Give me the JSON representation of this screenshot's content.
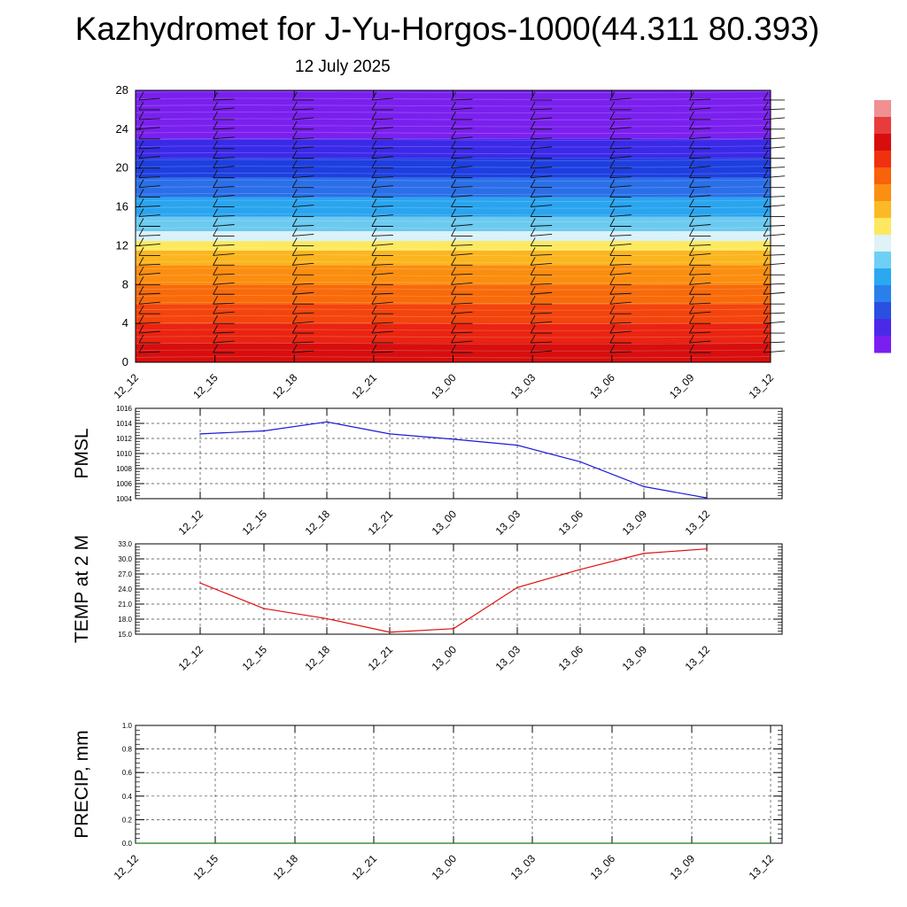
{
  "header": {
    "title": "Kazhydromet for J-Yu-Horgos-1000(44.311 80.393)",
    "date": "12 July 2025"
  },
  "chart_data": [
    {
      "type": "heatmap",
      "title": "",
      "time_labels": [
        "12_12",
        "12_15",
        "12_18",
        "12_21",
        "13_00",
        "13_03",
        "13_06",
        "13_09",
        "13_12"
      ],
      "y_ticks": [
        0,
        4,
        8,
        12,
        16,
        20,
        24,
        28
      ],
      "ylim": [
        0,
        28
      ],
      "color_bands": [
        {
          "from": 0,
          "to": 2,
          "color": "#d80e0e"
        },
        {
          "from": 2,
          "to": 4,
          "color": "#ea2410"
        },
        {
          "from": 4,
          "to": 6,
          "color": "#f3440c"
        },
        {
          "from": 6,
          "to": 8,
          "color": "#f86a0a"
        },
        {
          "from": 8,
          "to": 10,
          "color": "#fb8d0f"
        },
        {
          "from": 10,
          "to": 11.5,
          "color": "#fbb51f"
        },
        {
          "from": 11.5,
          "to": 12.5,
          "color": "#fde85f"
        },
        {
          "from": 12.5,
          "to": 13.5,
          "color": "#d9f2fa"
        },
        {
          "from": 13.5,
          "to": 15,
          "color": "#6bcaf0"
        },
        {
          "from": 15,
          "to": 17,
          "color": "#2aa4ef"
        },
        {
          "from": 17,
          "to": 19,
          "color": "#2a6fe8"
        },
        {
          "from": 19,
          "to": 21,
          "color": "#1e3fe0"
        },
        {
          "from": 21,
          "to": 23,
          "color": "#3a2ae8"
        },
        {
          "from": 23,
          "to": 28,
          "color": "#7a20ee"
        }
      ],
      "colorbar": [
        "#7a1ff0",
        "#4a2ae8",
        "#2a50e0",
        "#2a80ea",
        "#2aa8f0",
        "#6fd0f5",
        "#dff2f6",
        "#fde860",
        "#fbba25",
        "#fb8f12",
        "#f7620a",
        "#f0300f",
        "#d80e0e",
        "#e83c3c",
        "#f09090"
      ]
    },
    {
      "type": "line",
      "ylabel": "PMSL",
      "x": [
        "12_12",
        "12_15",
        "12_18",
        "12_21",
        "13_00",
        "13_03",
        "13_06",
        "13_09",
        "13_12"
      ],
      "y_ticks": [
        1004,
        1006,
        1008,
        1010,
        1012,
        1014,
        1016
      ],
      "ylim": [
        1004,
        1016
      ],
      "series": [
        {
          "values": [
            1012.6,
            1013.0,
            1014.2,
            1012.6,
            1011.9,
            1011.1,
            1008.9,
            1005.6,
            1004.1
          ],
          "color": "#1a1ad8"
        }
      ],
      "grid": true
    },
    {
      "type": "line",
      "ylabel": "TEMP at 2 M",
      "x": [
        "12_12",
        "12_15",
        "12_18",
        "12_21",
        "13_00",
        "13_03",
        "13_06",
        "13_09",
        "13_12"
      ],
      "y_ticks": [
        "15.0",
        "18.0",
        "21.0",
        "24.0",
        "27.0",
        "30.0",
        "33.0"
      ],
      "ylim": [
        15,
        33
      ],
      "series": [
        {
          "values": [
            25.2,
            20.1,
            18.1,
            15.4,
            16.1,
            24.3,
            27.9,
            31.1,
            32.0
          ],
          "color": "#e01010"
        }
      ],
      "grid": true
    },
    {
      "type": "line",
      "ylabel": "PRECIP, mm",
      "x": [
        "12_12",
        "12_15",
        "12_18",
        "12_21",
        "13_00",
        "13_03",
        "13_06",
        "13_09",
        "13_12"
      ],
      "y_ticks": [
        "0.0",
        "0.2",
        "0.4",
        "0.6",
        "0.8",
        "1.0"
      ],
      "ylim": [
        0,
        1
      ],
      "series": [
        {
          "values": [
            0,
            0,
            0,
            0,
            0,
            0,
            0,
            0,
            0
          ],
          "color": "#1a7a1a"
        }
      ],
      "grid": true
    }
  ]
}
